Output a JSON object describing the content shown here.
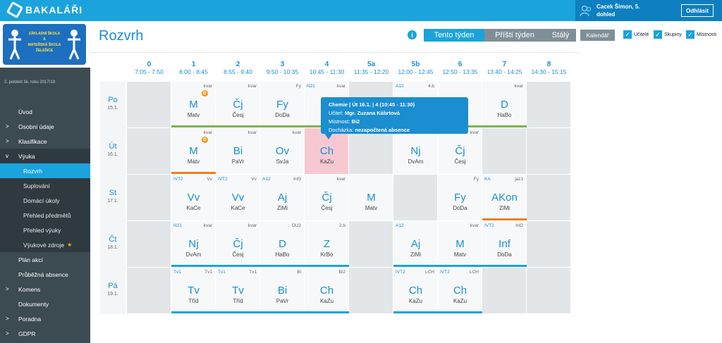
{
  "brand": "BAKALÁŘI",
  "user": {
    "name": "Cacek Šimon, 5.",
    "role": "dohled",
    "logout": "Odhlásit"
  },
  "school_logo": {
    "lines": [
      "ZÁKLADNÍ ŠKOLA",
      "A",
      "MATEŘSKÁ ŠKOLA",
      "ŽELEŠICE"
    ]
  },
  "term": "2. pololetí šk. roku 2017/18",
  "menu": [
    {
      "label": "Úvod",
      "chevron": ""
    },
    {
      "label": "Osobní údaje",
      "chevron": ">"
    },
    {
      "label": "Klasifikace",
      "chevron": ">"
    },
    {
      "label": "Výuka",
      "chevron": "v"
    },
    {
      "label": "Rozvrh",
      "chevron": "",
      "sub": true,
      "active": true
    },
    {
      "label": "Suplování",
      "chevron": "",
      "sub": true
    },
    {
      "label": "Domácí úkoly",
      "chevron": "",
      "sub": true
    },
    {
      "label": "Přehled předmětů",
      "chevron": "",
      "sub": true
    },
    {
      "label": "Přehled výuky",
      "chevron": "",
      "sub": true
    },
    {
      "label": "Výukové zdroje",
      "chevron": "",
      "sub": true,
      "star": "★"
    },
    {
      "label": "Plán akcí",
      "chevron": ""
    },
    {
      "label": "Průběžná absence",
      "chevron": ""
    },
    {
      "label": "Komens",
      "chevron": ">"
    },
    {
      "label": "Dokumenty",
      "chevron": ""
    },
    {
      "label": "Poradna",
      "chevron": ">"
    },
    {
      "label": "GDPR",
      "chevron": ">"
    }
  ],
  "page_title": "Rozvrh",
  "info": "i",
  "tabs": [
    "Tento týden",
    "Příští týden",
    "Stálý"
  ],
  "calendar_button": "Kalendář",
  "checkboxes": [
    "Učitelé",
    "Skupiny",
    "Místnosti"
  ],
  "checkmark": "✓",
  "hours": [
    {
      "num": "0",
      "time": "7:05 - 7:50"
    },
    {
      "num": "1",
      "time": "8:00 - 8:45"
    },
    {
      "num": "2",
      "time": "8:55 - 9:40"
    },
    {
      "num": "3",
      "time": "9:50 - 10:35"
    },
    {
      "num": "4",
      "time": "10:45 - 11:30"
    },
    {
      "num": "5a",
      "time": "11:35 - 12:20"
    },
    {
      "num": "5b",
      "time": "12:00 - 12:45"
    },
    {
      "num": "6",
      "time": "12:50 - 13:35"
    },
    {
      "num": "7",
      "time": "13:40 - 14:25"
    },
    {
      "num": "8",
      "time": "14:30 - 15:15"
    }
  ],
  "days": [
    {
      "name": "Po",
      "date": "15.1.",
      "cells": [
        null,
        {
          "group": "",
          "room": "kvar",
          "subject": "M",
          "teacher": "Matv",
          "bar": "green",
          "badge": "D"
        },
        {
          "group": "",
          "room": "kvar",
          "subject": "Čj",
          "teacher": "Česj",
          "bar": "green"
        },
        {
          "group": "",
          "room": "Fy",
          "subject": "Fy",
          "teacher": "DoDa",
          "bar": "green"
        },
        {
          "group": "N21",
          "room": "kvar",
          "subject": "",
          "teacher": "",
          "bar": "green"
        },
        null,
        {
          "group": "A12",
          "room": "4.b",
          "subject": "",
          "teacher": "",
          "bar": "green"
        },
        {
          "group": "",
          "room": "",
          "subject": "",
          "teacher": "",
          "bar": "green"
        },
        {
          "group": "",
          "room": "kvar",
          "subject": "D",
          "teacher": "HaBo",
          "bar": "green"
        },
        null
      ]
    },
    {
      "name": "Út",
      "date": "16.1.",
      "cells": [
        null,
        {
          "group": "",
          "room": "kvar",
          "subject": "M",
          "teacher": "Matv",
          "bar": "orange",
          "badge": "D"
        },
        {
          "group": "",
          "room": "kvar",
          "subject": "Bi",
          "teacher": "PaVr",
          "bar": ""
        },
        {
          "group": "",
          "room": "kvar",
          "subject": "Ov",
          "teacher": "SvJa",
          "bar": ""
        },
        {
          "group": "",
          "room": "",
          "subject": "Ch",
          "teacher": "KaZu",
          "bar": "",
          "hl": true
        },
        null,
        {
          "group": "",
          "room": "",
          "subject": "Nj",
          "teacher": "DvAm",
          "bar": ""
        },
        {
          "group": "",
          "room": "kvar",
          "subject": "Čj",
          "teacher": "Česj",
          "bar": ""
        },
        null,
        null
      ]
    },
    {
      "name": "St",
      "date": "17.1.",
      "cells": [
        null,
        {
          "group": "IVT2",
          "room": "Vv",
          "subject": "Vv",
          "teacher": "KaCe",
          "bar": ""
        },
        {
          "group": "IVT2",
          "room": "Vv",
          "subject": "Vv",
          "teacher": "KaCe",
          "bar": ""
        },
        {
          "group": "A12",
          "room": "Inf3",
          "subject": "Aj",
          "teacher": "ZiMi",
          "bar": ""
        },
        {
          "group": "",
          "room": "kvar",
          "subject": "Čj",
          "teacher": "Česj",
          "bar": ""
        },
        {
          "group": "",
          "room": "",
          "subject": "M",
          "teacher": "Matv",
          "bar": ""
        },
        null,
        {
          "group": "",
          "room": "Fy",
          "subject": "Fy",
          "teacher": "DoDa",
          "bar": ""
        },
        {
          "group": "KA",
          "room": "jaz1",
          "subject": "AKon",
          "teacher": "ZiMi",
          "bar": "orange"
        },
        null
      ]
    },
    {
      "name": "Čt",
      "date": "18.1.",
      "cells": [
        null,
        {
          "group": "N21",
          "room": "kvar",
          "subject": "Nj",
          "teacher": "DvAm",
          "bar": "blue"
        },
        {
          "group": "",
          "room": "kvar",
          "subject": "Čj",
          "teacher": "Česj",
          "bar": "blue"
        },
        {
          "group": "",
          "room": "OU2",
          "subject": "D",
          "teacher": "HaBo",
          "bar": "blue"
        },
        {
          "group": "",
          "room": "2.b",
          "subject": "Z",
          "teacher": "KrBo",
          "bar": "blue"
        },
        null,
        {
          "group": "A12",
          "room": "",
          "subject": "Aj",
          "teacher": "ZiMi",
          "bar": "blue"
        },
        {
          "group": "",
          "room": "kvar",
          "subject": "M",
          "teacher": "Matv",
          "bar": "blue"
        },
        {
          "group": "IVT2",
          "room": "Inf2",
          "subject": "Inf",
          "teacher": "DoDa",
          "bar": "blue"
        },
        null
      ]
    },
    {
      "name": "Pá",
      "date": "19.1.",
      "cells": [
        null,
        {
          "group": "Tv1",
          "room": "Tv1",
          "subject": "Tv",
          "teacher": "Tříd",
          "bar": "blue"
        },
        {
          "group": "Tv1",
          "room": "Tv1",
          "subject": "Tv",
          "teacher": "Tříd",
          "bar": "blue"
        },
        {
          "group": "",
          "room": "Bi",
          "subject": "Bi",
          "teacher": "PaVr",
          "bar": "blue"
        },
        {
          "group": "",
          "room": "Bi2",
          "subject": "Ch",
          "teacher": "KaZu",
          "bar": "blue"
        },
        null,
        {
          "group": "IVT2",
          "room": "LCH",
          "subject": "Ch",
          "teacher": "KaZu",
          "bar": "blue"
        },
        {
          "group": "IVT2",
          "room": "LCH",
          "subject": "Ch",
          "teacher": "KaZu",
          "bar": "blue"
        },
        null,
        null
      ]
    }
  ],
  "tooltip": {
    "title": "Chemie | Út 16.1. | 4 (10:45 - 11:30)",
    "teacher_label": "Učitel:",
    "teacher": "Mgr. Zuzana Kábrtová",
    "room_label": "Místnost:",
    "room": "Bi2",
    "attendance_label": "Docházka:",
    "attendance": "nezapočtená absence"
  },
  "colors": {
    "primary": "#1aa3dc",
    "dark": "#0d7fc0",
    "sidebar": "#3c4a52",
    "green": "#7bb34a",
    "orange": "#f07e22",
    "pink": "#f8c8d2"
  }
}
